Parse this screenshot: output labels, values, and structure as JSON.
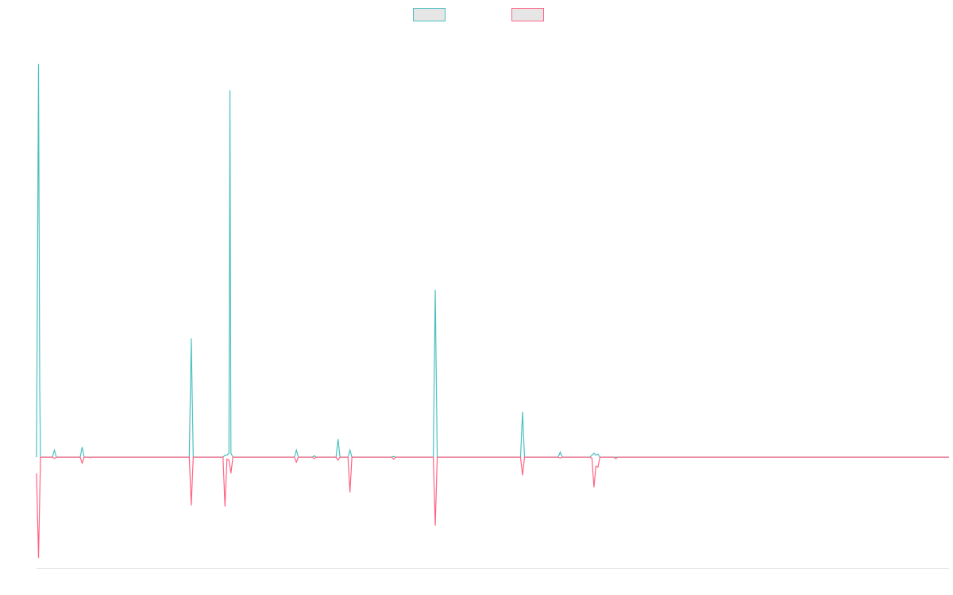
{
  "colors": {
    "background": "#ffffff",
    "teal": "#4bc0c0",
    "pink": "#ff6384",
    "legend_fill": "#e6e6e6",
    "axis": "#e6e6e6"
  },
  "chart_data": {
    "type": "line",
    "title": "",
    "xlabel": "",
    "ylabel": "",
    "grid": false,
    "legend_position": "top-center",
    "xlim": [
      0,
      460
    ],
    "ylim": [
      -55,
      215
    ],
    "series": [
      {
        "color": "#4bc0c0",
        "points": [
          [
            0,
            0
          ],
          [
            1,
            195
          ],
          [
            1.6,
            35
          ],
          [
            2,
            0
          ],
          [
            8,
            0
          ],
          [
            9,
            3.5
          ],
          [
            10,
            0
          ],
          [
            22,
            0
          ],
          [
            23,
            5
          ],
          [
            24,
            0
          ],
          [
            77,
            0
          ],
          [
            78,
            59
          ],
          [
            79,
            0
          ],
          [
            94,
            0
          ],
          [
            95,
            1
          ],
          [
            96,
            1
          ],
          [
            97,
            2
          ],
          [
            97.5,
            182
          ],
          [
            98,
            2
          ],
          [
            99,
            0
          ],
          [
            130,
            0
          ],
          [
            131,
            3.5
          ],
          [
            132,
            0
          ],
          [
            139,
            0
          ],
          [
            140,
            0.7
          ],
          [
            141,
            0
          ],
          [
            151,
            0
          ],
          [
            152,
            9
          ],
          [
            153,
            0
          ],
          [
            157,
            0
          ],
          [
            158,
            3.5
          ],
          [
            159,
            0
          ],
          [
            179,
            0
          ],
          [
            180,
            0.4
          ],
          [
            181,
            0
          ],
          [
            200,
            0
          ],
          [
            201,
            83
          ],
          [
            202,
            0
          ],
          [
            244,
            0
          ],
          [
            245,
            22.5
          ],
          [
            246,
            0
          ],
          [
            263,
            0
          ],
          [
            264,
            2.5
          ],
          [
            265,
            0
          ],
          [
            279,
            0
          ],
          [
            280,
            1
          ],
          [
            281,
            2
          ],
          [
            282,
            1
          ],
          [
            283,
            1.5
          ],
          [
            284,
            0
          ],
          [
            460,
            0
          ]
        ]
      },
      {
        "color": "#ff6384",
        "points": [
          [
            0,
            -8
          ],
          [
            1,
            -50
          ],
          [
            2,
            0
          ],
          [
            8,
            0
          ],
          [
            9,
            -0.6
          ],
          [
            10,
            0
          ],
          [
            22,
            0
          ],
          [
            23,
            -3
          ],
          [
            24,
            0
          ],
          [
            26,
            0
          ],
          [
            27,
            -0.2
          ],
          [
            28,
            0
          ],
          [
            77,
            0
          ],
          [
            78,
            -24
          ],
          [
            79,
            0
          ],
          [
            94,
            0
          ],
          [
            95,
            -24.5
          ],
          [
            96,
            -1
          ],
          [
            97,
            -1.5
          ],
          [
            98,
            -8
          ],
          [
            99,
            0
          ],
          [
            130,
            0
          ],
          [
            131,
            -2.5
          ],
          [
            132,
            0
          ],
          [
            139,
            0
          ],
          [
            140,
            -0.7
          ],
          [
            141,
            0
          ],
          [
            151,
            0
          ],
          [
            152,
            -1.5
          ],
          [
            153,
            0
          ],
          [
            157,
            0
          ],
          [
            158,
            -17.5
          ],
          [
            159,
            0
          ],
          [
            179,
            0
          ],
          [
            180,
            -1
          ],
          [
            181,
            0
          ],
          [
            200,
            0
          ],
          [
            201,
            -34
          ],
          [
            202,
            0
          ],
          [
            244,
            0
          ],
          [
            245,
            -9
          ],
          [
            246,
            0
          ],
          [
            263,
            0
          ],
          [
            264,
            -0.4
          ],
          [
            265,
            0
          ],
          [
            279,
            0
          ],
          [
            280,
            -0.5
          ],
          [
            281,
            -15
          ],
          [
            282,
            -4.5
          ],
          [
            283,
            -5
          ],
          [
            284,
            0
          ],
          [
            291,
            0
          ],
          [
            292,
            -0.7
          ],
          [
            293,
            0
          ],
          [
            460,
            0
          ]
        ]
      }
    ]
  }
}
